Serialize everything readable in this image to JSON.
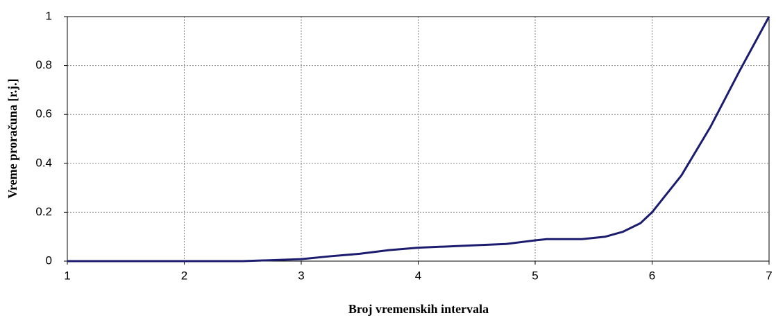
{
  "chart_data": {
    "type": "line",
    "xlabel": "Broj vremenskih intervala",
    "ylabel": "Vreme proračuna [r.j.]",
    "x": [
      1,
      2,
      2.5,
      3,
      3.25,
      3.5,
      3.75,
      4,
      4.25,
      4.5,
      4.75,
      5,
      5.1,
      5.25,
      5.4,
      5.6,
      5.75,
      5.9,
      6,
      6.1,
      6.25,
      6.5,
      6.75,
      7
    ],
    "series": [
      {
        "name": "Vreme proračuna",
        "color": "#1c1c6e",
        "values": [
          0,
          0,
          0,
          0.008,
          0.02,
          0.03,
          0.045,
          0.055,
          0.06,
          0.065,
          0.07,
          0.085,
          0.09,
          0.09,
          0.09,
          0.1,
          0.12,
          0.155,
          0.2,
          0.26,
          0.35,
          0.55,
          0.78,
          1
        ]
      }
    ],
    "xlim": [
      1,
      7
    ],
    "xticks": [
      1,
      2,
      3,
      4,
      5,
      6,
      7
    ],
    "ylim": [
      0,
      1
    ],
    "yticks": [
      0,
      0.2,
      0.4,
      0.6,
      0.8,
      1
    ],
    "grid": true
  }
}
